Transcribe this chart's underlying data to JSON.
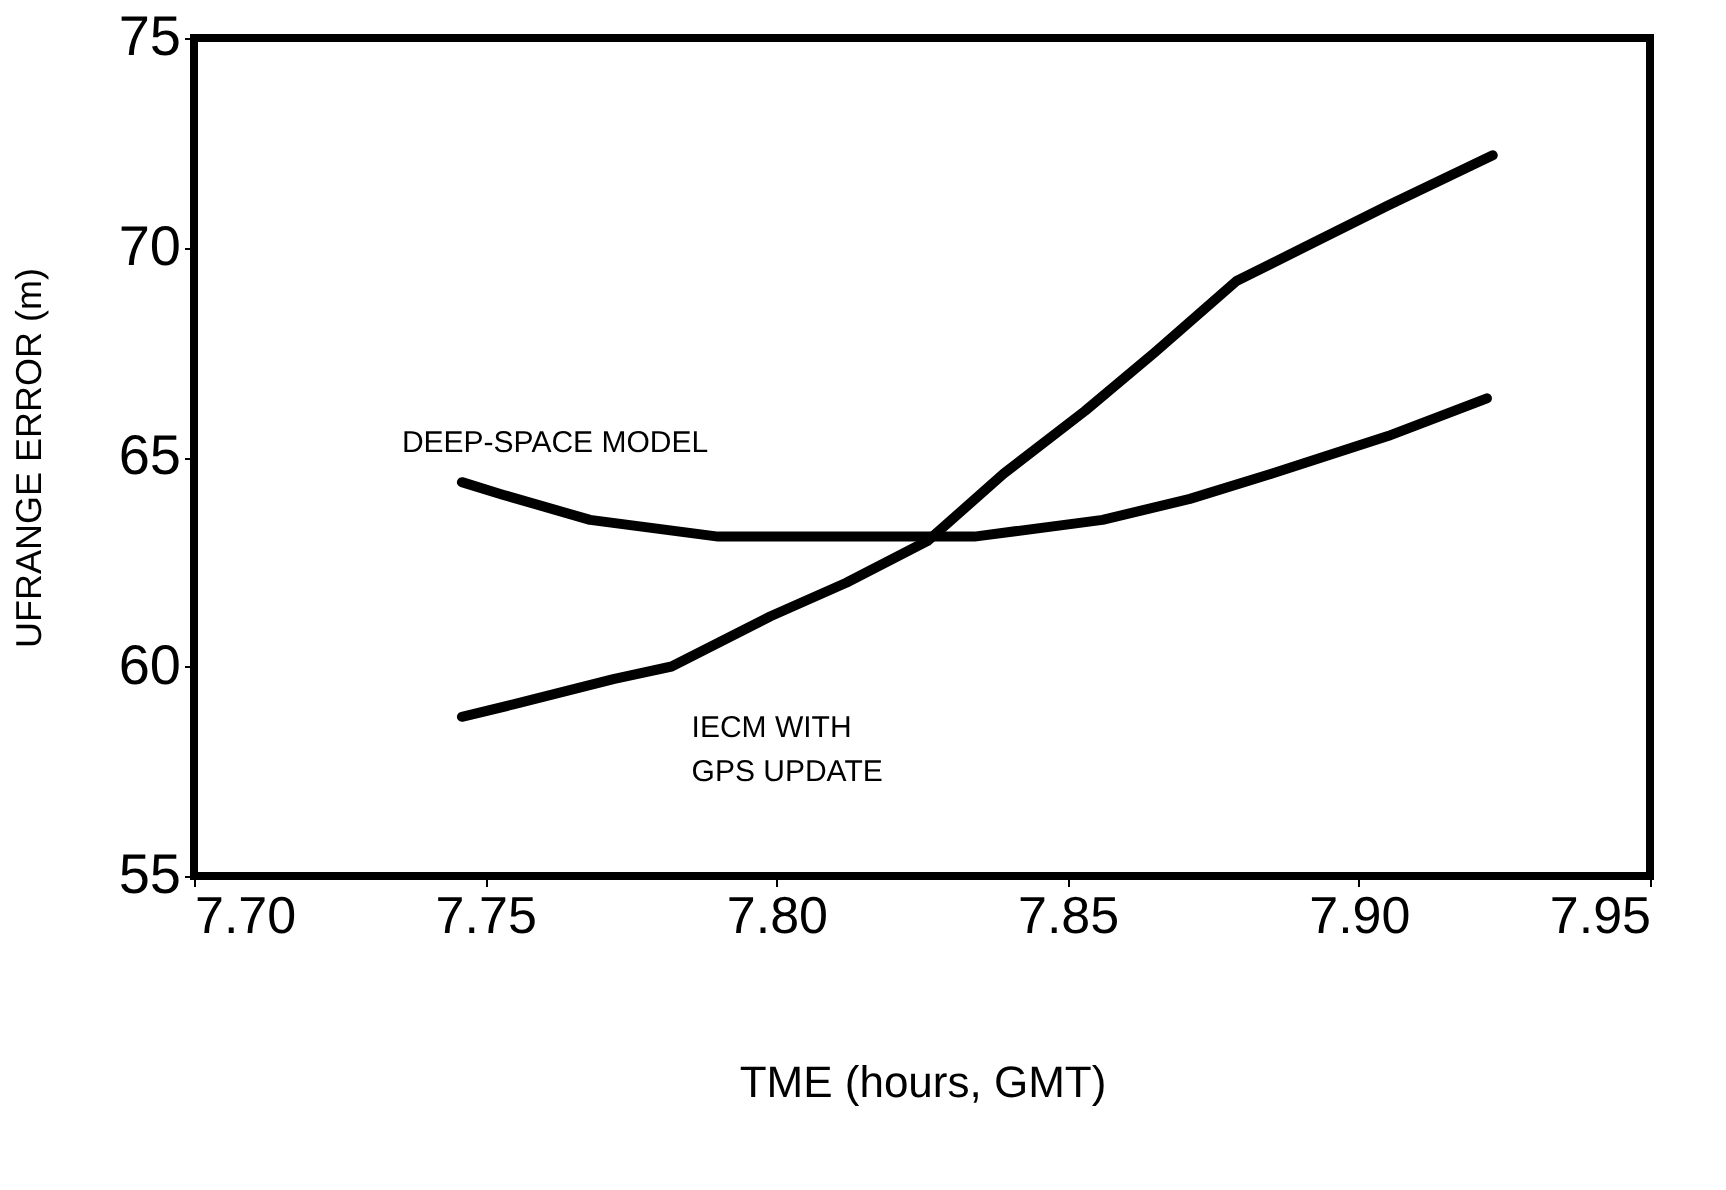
{
  "chart_data": {
    "type": "line",
    "xlabel": "TME (hours, GMT)",
    "ylabel": "UFRANGE ERROR (m)",
    "xlim": [
      7.7,
      7.95
    ],
    "xticks": [
      {
        "value": 7.7,
        "label": "7.70"
      },
      7.75,
      {
        "value": 7.8,
        "label": "7.80"
      },
      7.85,
      {
        "value": 7.9,
        "label": "7.90"
      },
      7.95
    ],
    "ylim": [
      55,
      75
    ],
    "yticks": [
      55,
      60,
      65,
      70,
      75
    ],
    "grid": false,
    "legend": false,
    "marker": "none",
    "line_style": "solid",
    "series": [
      {
        "name": "DEEP-SPACE MODEL",
        "color": "#000000",
        "x": [
          7.746,
          7.753,
          7.768,
          7.79,
          7.812,
          7.834,
          7.856,
          7.871,
          7.885,
          7.905,
          7.922
        ],
        "values": [
          64.4,
          64.1,
          63.5,
          63.1,
          63.1,
          63.1,
          63.5,
          64.0,
          64.6,
          65.5,
          66.4
        ]
      },
      {
        "name": "IECM WITH\nGPS UPDATE",
        "color": "#000000",
        "x": [
          7.746,
          7.755,
          7.772,
          7.782,
          7.799,
          7.812,
          7.826,
          7.839,
          7.853,
          7.865,
          7.879,
          7.892,
          7.905,
          7.923
        ],
        "values": [
          58.8,
          59.1,
          59.7,
          60.0,
          61.2,
          62.0,
          63.0,
          64.6,
          66.1,
          67.5,
          69.2,
          70.1,
          71.0,
          72.2
        ]
      }
    ]
  }
}
